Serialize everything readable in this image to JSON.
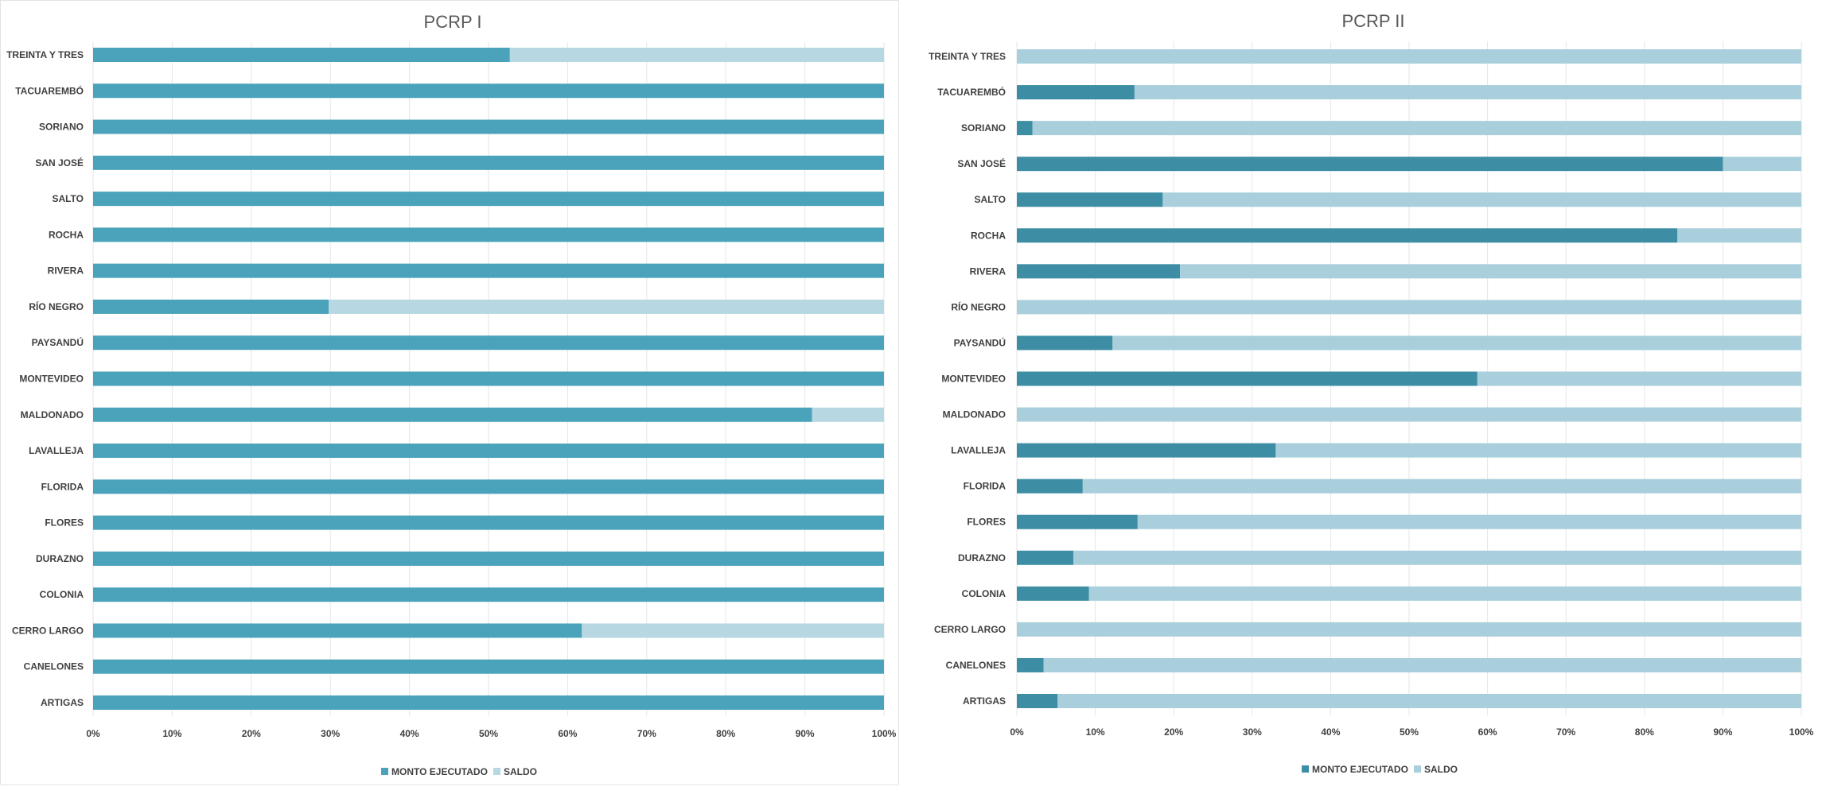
{
  "colors": {
    "left_executed": "#4aa3bb",
    "left_saldo": "#b7d7e2",
    "right_executed": "#3d8ea5",
    "right_saldo": "#a9cfdc",
    "grid": "#e6e6e6",
    "text": "#404040",
    "title": "#595959"
  },
  "chart_data": [
    {
      "type": "bar",
      "orientation": "horizontal",
      "stacked": "percent",
      "title": "PCRP I",
      "categories": [
        "TREINTA Y TRES",
        "TACUAREMBÓ",
        "SORIANO",
        "SAN JOSÉ",
        "SALTO",
        "ROCHA",
        "RIVERA",
        "RÍO NEGRO",
        "PAYSANDÚ",
        "MONTEVIDEO",
        "MALDONADO",
        "LAVALLEJA",
        "FLORIDA",
        "FLORES",
        "DURAZNO",
        "COLONIA",
        "CERRO LARGO",
        "CANELONES",
        "ARTIGAS"
      ],
      "series": [
        {
          "name": "MONTO EJECUTADO",
          "values": [
            52.7,
            100,
            100,
            100,
            100,
            100,
            100,
            29.8,
            100,
            100,
            90.9,
            100,
            100,
            100,
            100,
            100,
            61.8,
            100,
            100
          ]
        },
        {
          "name": "SALDO",
          "values": [
            47.3,
            0,
            0,
            0,
            0,
            0,
            0,
            70.2,
            0,
            0,
            9.1,
            0,
            0,
            0,
            0,
            0,
            38.2,
            0,
            0
          ]
        }
      ],
      "xticks": [
        "0%",
        "10%",
        "20%",
        "30%",
        "40%",
        "50%",
        "60%",
        "70%",
        "80%",
        "90%",
        "100%"
      ],
      "xlim": [
        0,
        100
      ],
      "grid": true,
      "legend": "bottom"
    },
    {
      "type": "bar",
      "orientation": "horizontal",
      "stacked": "percent",
      "title": "PCRP II",
      "categories": [
        "TREINTA Y TRES",
        "TACUAREMBÓ",
        "SORIANO",
        "SAN JOSÉ",
        "SALTO",
        "ROCHA",
        "RIVERA",
        "RÍO NEGRO",
        "PAYSANDÚ",
        "MONTEVIDEO",
        "MALDONADO",
        "LAVALLEJA",
        "FLORIDA",
        "FLORES",
        "DURAZNO",
        "COLONIA",
        "CERRO LARGO",
        "CANELONES",
        "ARTIGAS"
      ],
      "series": [
        {
          "name": "MONTO EJECUTADO",
          "values": [
            0,
            15,
            2,
            90,
            18.6,
            84.2,
            20.8,
            0,
            12.2,
            58.7,
            0,
            33,
            8.4,
            15.4,
            7.2,
            9.2,
            0,
            3.4,
            5.2
          ]
        },
        {
          "name": "SALDO",
          "values": [
            100,
            85,
            98,
            10,
            81.4,
            15.8,
            79.2,
            100,
            87.8,
            41.3,
            100,
            67,
            91.6,
            84.6,
            92.8,
            90.8,
            100,
            96.6,
            94.8
          ]
        }
      ],
      "xticks": [
        "0%",
        "10%",
        "20%",
        "30%",
        "40%",
        "50%",
        "60%",
        "70%",
        "80%",
        "90%",
        "100%"
      ],
      "xlim": [
        0,
        100
      ],
      "grid": true,
      "legend": "bottom"
    }
  ]
}
